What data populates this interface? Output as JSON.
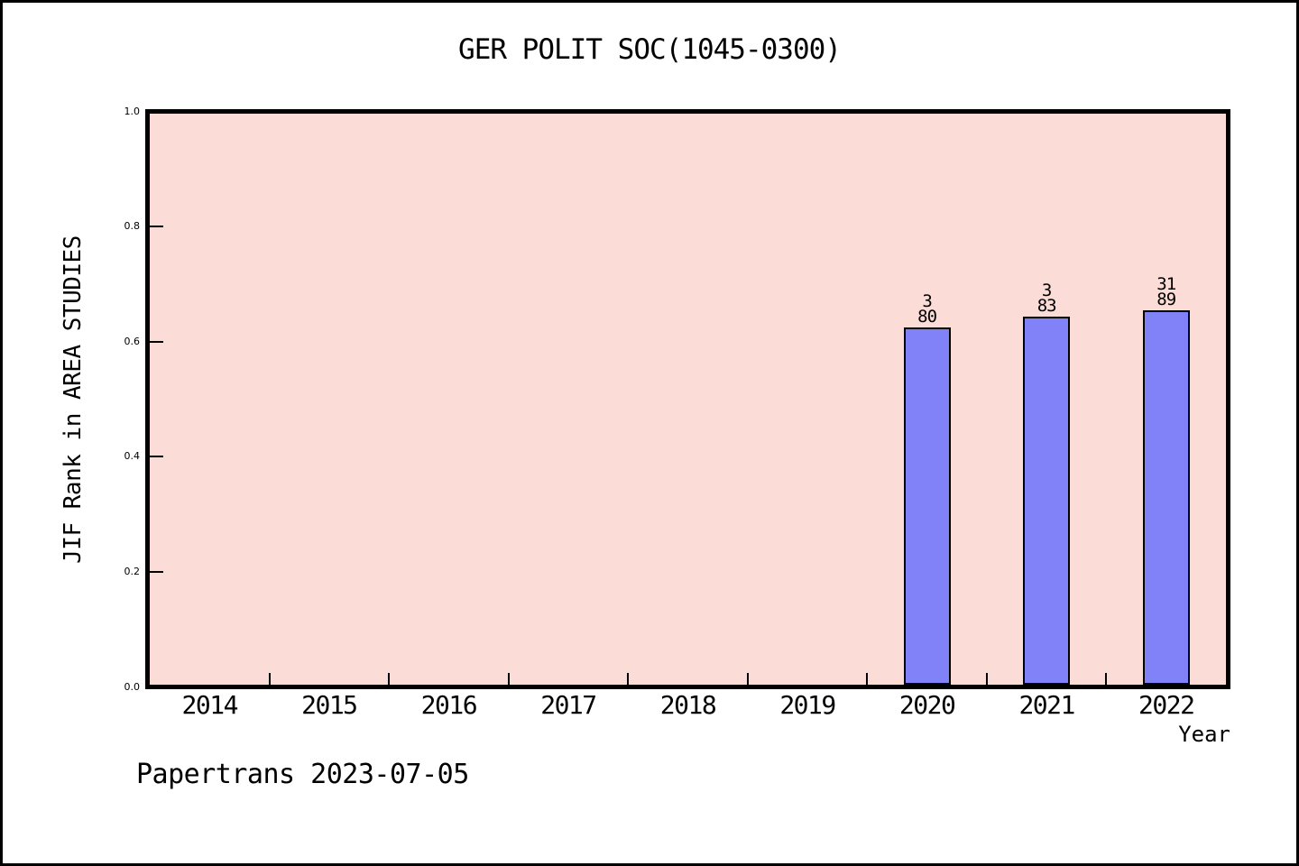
{
  "footer": "Papertrans 2023-07-05",
  "chart_data": {
    "type": "bar",
    "title": "GER POLIT SOC(1045-0300)",
    "xlabel": "Year",
    "ylabel": "JIF Rank in AREA STUDIES",
    "categories": [
      "2014",
      "2015",
      "2016",
      "2017",
      "2018",
      "2019",
      "2020",
      "2021",
      "2022"
    ],
    "ylim": [
      0.0,
      1.0
    ],
    "y_ticks": [
      0.0,
      0.2,
      0.4,
      0.6,
      0.8,
      1.0
    ],
    "grid": false,
    "legend": false,
    "bars": [
      {
        "category": "2020",
        "rank_label": "3",
        "total_label": "80",
        "value": 0.62
      },
      {
        "category": "2021",
        "rank_label": "3",
        "total_label": "83",
        "value": 0.64
      },
      {
        "category": "2022",
        "rank_label": "31",
        "total_label": "89",
        "value": 0.65
      }
    ],
    "colors": {
      "bar_fill": "#8282f8",
      "bar_edge": "#000000",
      "plot_background": "#fcdcd6",
      "frame": "#000000"
    }
  }
}
